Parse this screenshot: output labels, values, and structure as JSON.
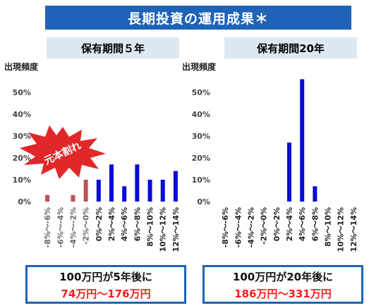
{
  "header": {
    "title": "長期投資の運用成果＊"
  },
  "panels": [
    {
      "period": "保有期間５年",
      "ylabel": "出現頻度",
      "summary_line1": "100万円が5年後に",
      "summary_line2": "74万円〜176万円"
    },
    {
      "period": "保有期間20年",
      "ylabel": "出現頻度",
      "summary_line1": "100万円が20年後に",
      "summary_line2": "186万円〜331万円"
    }
  ],
  "annotation": {
    "text": "元本割れ"
  },
  "colors": {
    "header": "#1f63b8",
    "period_bg": "#dde8f3",
    "loss": "#c0504d",
    "gain": "#0a0adc",
    "highlight": "#ff1a1a",
    "burst": "#e0282a"
  },
  "chart_data": [
    {
      "type": "bar",
      "title": "保有期間５年",
      "ylabel": "出現頻度",
      "categories": [
        "-8%〜-6%",
        "-6%〜-4%",
        "-4%〜-2%",
        "-2%〜0%",
        "0%〜2%",
        "2%〜4%",
        "4%〜6%",
        "6%〜8%",
        "8%〜10%",
        "10%〜12%",
        "12%〜14%"
      ],
      "values": [
        3,
        0,
        3,
        10,
        10,
        17,
        7,
        17,
        10,
        10,
        14
      ],
      "yticks": [
        "0%",
        "10%",
        "20%",
        "30%",
        "40%",
        "50%"
      ],
      "ylim": [
        0,
        60
      ],
      "loss_categories": 4
    },
    {
      "type": "bar",
      "title": "保有期間20年",
      "ylabel": "出現頻度",
      "categories": [
        "-8%〜-6%",
        "-6%〜-4%",
        "-4%〜-2%",
        "-2%〜0%",
        "0%〜2%",
        "2%〜4%",
        "4%〜6%",
        "6%〜8%",
        "8%〜10%",
        "10%〜12%",
        "12%〜14%"
      ],
      "values": [
        0,
        0,
        0,
        0,
        0,
        27,
        56,
        7,
        0,
        0,
        0
      ],
      "yticks": [
        "0%",
        "10%",
        "20%",
        "30%",
        "40%",
        "50%"
      ],
      "ylim": [
        0,
        60
      ],
      "loss_categories": 0
    }
  ]
}
